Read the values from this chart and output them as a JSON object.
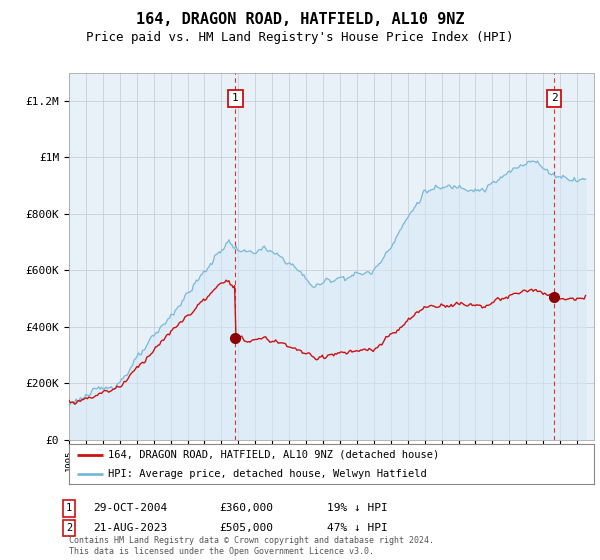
{
  "title": "164, DRAGON ROAD, HATFIELD, AL10 9NZ",
  "subtitle": "Price paid vs. HM Land Registry's House Price Index (HPI)",
  "ylim": [
    0,
    1300000
  ],
  "yticks": [
    0,
    200000,
    400000,
    600000,
    800000,
    1000000,
    1200000
  ],
  "ytick_labels": [
    "£0",
    "£200K",
    "£400K",
    "£600K",
    "£800K",
    "£1M",
    "£1.2M"
  ],
  "x_start_year": 1995,
  "x_end_year": 2026,
  "hpi_color": "#7ab8d9",
  "hpi_fill_color": "#d6eaf8",
  "price_color": "#cc1111",
  "marker1_year": 2004.83,
  "marker1_price": 360000,
  "marker2_year": 2023.64,
  "marker2_price": 505000,
  "legend_line1": "164, DRAGON ROAD, HATFIELD, AL10 9NZ (detached house)",
  "legend_line2": "HPI: Average price, detached house, Welwyn Hatfield",
  "annotation1_date": "29-OCT-2004",
  "annotation1_price": "£360,000",
  "annotation1_hpi": "19% ↓ HPI",
  "annotation2_date": "21-AUG-2023",
  "annotation2_price": "£505,000",
  "annotation2_hpi": "47% ↓ HPI",
  "footer": "Contains HM Land Registry data © Crown copyright and database right 2024.\nThis data is licensed under the Open Government Licence v3.0.",
  "bg_color": "#ffffff",
  "plot_bg_color": "#e8f0f8",
  "grid_color": "#c0c8d8",
  "title_fontsize": 11,
  "subtitle_fontsize": 9,
  "tick_fontsize": 8
}
